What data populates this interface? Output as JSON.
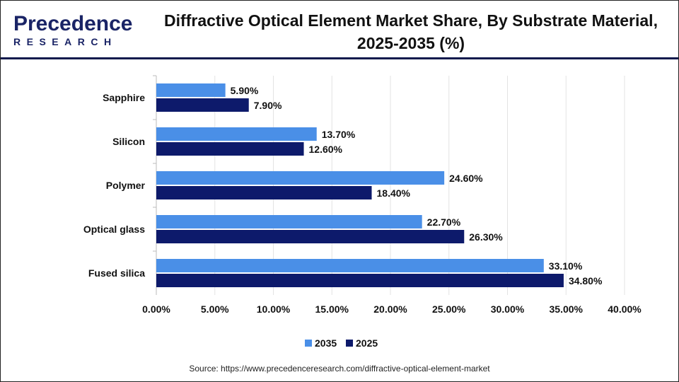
{
  "logo": {
    "line1": "Precedence",
    "line2": "RESEARCH"
  },
  "title": "Diffractive Optical Element Market Share, By Substrate Material, 2025-2035 (%)",
  "source": "Source: https://www.precedenceresearch.com/diffractive-optical-element-market",
  "chart_data": {
    "type": "bar",
    "orientation": "horizontal",
    "title": "Diffractive Optical Element Market Share, By Substrate Material, 2025-2035 (%)",
    "categories": [
      "Sapphire",
      "Silicon",
      "Polymer",
      "Optical glass",
      "Fused silica"
    ],
    "series": [
      {
        "name": "2035",
        "values": [
          5.9,
          13.7,
          24.6,
          22.7,
          33.1
        ],
        "labels": [
          "5.90%",
          "13.70%",
          "24.60%",
          "22.70%",
          "33.10%"
        ],
        "color": "#4a8fe7"
      },
      {
        "name": "2025",
        "values": [
          7.9,
          12.6,
          18.4,
          26.3,
          34.8
        ],
        "labels": [
          "7.90%",
          "12.60%",
          "18.40%",
          "26.30%",
          "34.80%"
        ],
        "color": "#0d1a6b"
      }
    ],
    "xlim": [
      0,
      40
    ],
    "xticks": [
      "0.00%",
      "5.00%",
      "10.00%",
      "15.00%",
      "20.00%",
      "25.00%",
      "30.00%",
      "35.00%",
      "40.00%"
    ],
    "grid": true,
    "legend": "bottom"
  }
}
